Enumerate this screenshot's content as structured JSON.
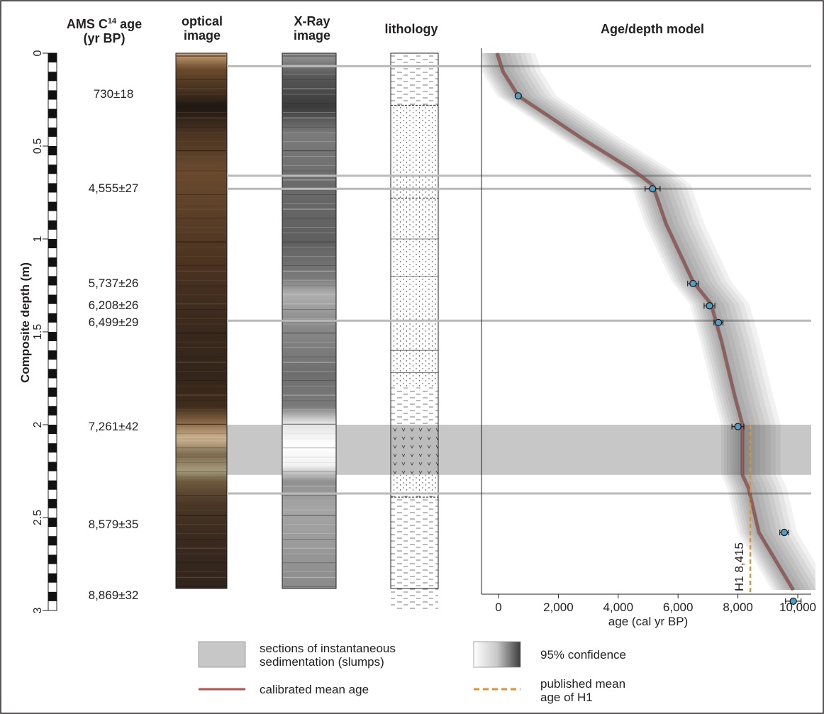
{
  "headers": {
    "ams_line1": "AMS C",
    "ams_sup": "14",
    "ams_line1_tail": " age",
    "ams_line2": "(yr BP)",
    "optical_line1": "optical",
    "optical_line2": "image",
    "xray_line1": "X-Ray",
    "xray_line2": "image",
    "lithology": "lithology",
    "model": "Age/depth model"
  },
  "depth_axis": {
    "label": "Composite depth (m)",
    "ticks": [
      "0",
      "0.5",
      "1",
      "1.5",
      "2",
      "2.5",
      "3"
    ],
    "range": [
      0,
      3
    ]
  },
  "ams_ages": [
    {
      "label": "730±18",
      "depth": 0.22
    },
    {
      "label": "4,555±27",
      "depth": 0.73
    },
    {
      "label": "5,737±26",
      "depth": 1.24
    },
    {
      "label": "6,208±26",
      "depth": 1.36
    },
    {
      "label": "6,499±29",
      "depth": 1.45
    },
    {
      "label": "7,261±42",
      "depth": 2.01
    },
    {
      "label": "8,579±35",
      "depth": 2.54
    },
    {
      "label": "8,869±32",
      "depth": 2.92
    }
  ],
  "chart_data": {
    "type": "line",
    "title": "Age/depth model",
    "xlabel": "age (cal yr BP)",
    "ylabel": "Composite depth (m)",
    "xlim": [
      -500,
      10600
    ],
    "ylim": [
      0,
      3
    ],
    "y_inverted": true,
    "x_ticks": [
      0,
      2000,
      4000,
      6000,
      8000,
      10000
    ],
    "x_tick_labels": [
      "0",
      "2,000",
      "4,000",
      "6,000",
      "8,000",
      "10,000"
    ],
    "series": [
      {
        "name": "calibrated mean age",
        "color": "#b5514a",
        "x": [
          -50,
          150,
          660,
          1500,
          2800,
          4400,
          4750,
          5150,
          5600,
          6500,
          7100,
          7450,
          7900,
          8150,
          8150,
          8350,
          8700,
          9850
        ],
        "y": [
          0.0,
          0.1,
          0.23,
          0.32,
          0.46,
          0.62,
          0.66,
          0.71,
          0.92,
          1.23,
          1.35,
          1.55,
          1.85,
          2.0,
          2.27,
          2.34,
          2.58,
          2.89
        ]
      }
    ],
    "dated_samples": [
      {
        "age": 660,
        "depth": 0.23,
        "err": 0
      },
      {
        "age": 5150,
        "depth": 0.73,
        "err": 250
      },
      {
        "age": 6500,
        "depth": 1.24,
        "err": 180
      },
      {
        "age": 7050,
        "depth": 1.36,
        "err": 180
      },
      {
        "age": 7350,
        "depth": 1.45,
        "err": 150
      },
      {
        "age": 8000,
        "depth": 2.01,
        "err": 200
      },
      {
        "age": 9550,
        "depth": 2.58,
        "err": 150
      },
      {
        "age": 9850,
        "depth": 2.95,
        "err": 260
      }
    ],
    "h1": {
      "label": "H1 8,415",
      "age": 8415,
      "depth_top": 2.0,
      "depth_bottom": 3.0,
      "color": "#e3922b"
    },
    "slump_bands": [
      {
        "top": 2.0,
        "bottom": 2.27
      }
    ],
    "horizons": [
      0.07,
      0.66,
      0.73,
      1.44,
      2.37
    ]
  },
  "legend": {
    "slumps_line1": "sections of instantaneous",
    "slumps_line2": "sedimentation (slumps)",
    "confidence": "95% confidence",
    "mean_age": "calibrated mean age",
    "published_line1": "published mean",
    "published_line2": "age of H1",
    "slump_color": "#c8c7c8",
    "mean_color": "#b5514a",
    "h1_color": "#e3922b"
  }
}
